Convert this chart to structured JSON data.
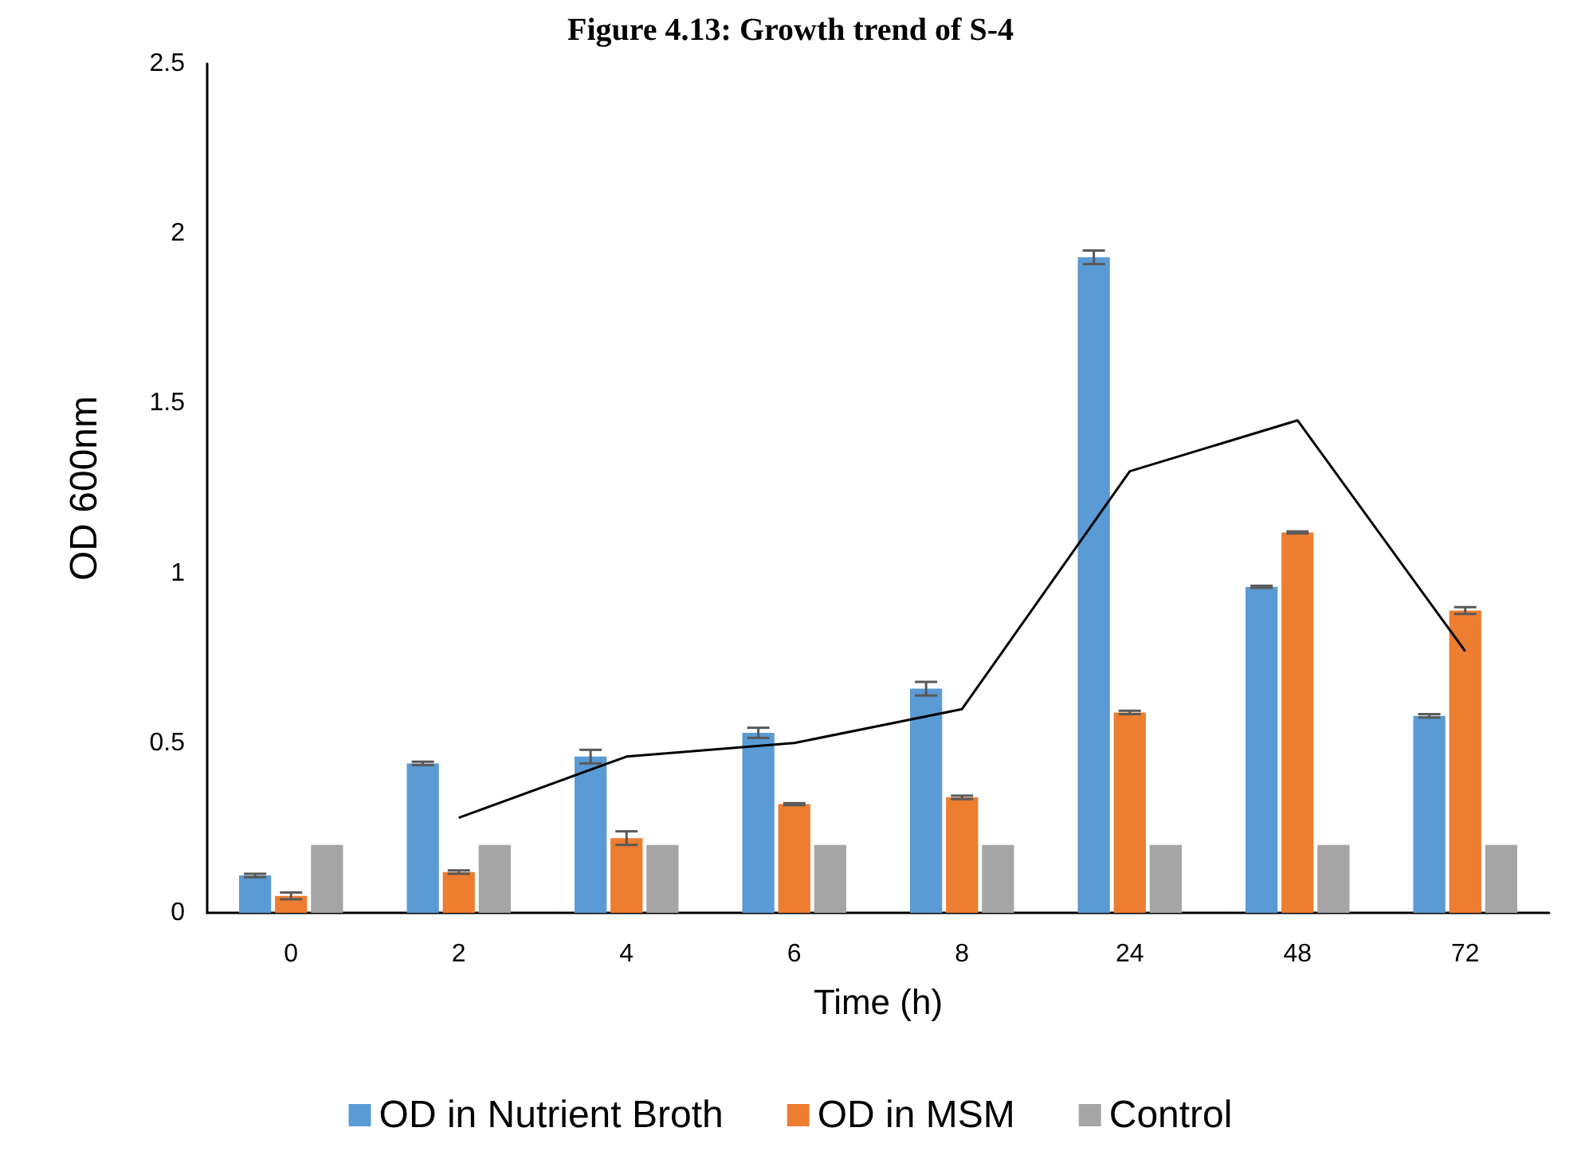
{
  "chart_data": {
    "type": "bar",
    "title": "Figure 4.13: Growth trend of S-4",
    "xlabel": "Time (h)",
    "ylabel": "OD 600nm",
    "categories": [
      "0",
      "2",
      "4",
      "6",
      "8",
      "24",
      "48",
      "72"
    ],
    "series": [
      {
        "name": "OD in Nutrient Broth",
        "color": "#5b9bd5",
        "values": [
          0.11,
          0.44,
          0.46,
          0.53,
          0.66,
          1.93,
          0.96,
          0.58
        ],
        "errors": [
          0.005,
          0.005,
          0.02,
          0.015,
          0.02,
          0.02,
          0.003,
          0.005
        ]
      },
      {
        "name": "OD in MSM",
        "color": "#ed7d31",
        "values": [
          0.05,
          0.12,
          0.22,
          0.32,
          0.34,
          0.59,
          1.12,
          0.89
        ],
        "errors": [
          0.01,
          0.005,
          0.02,
          0.003,
          0.005,
          0.005,
          0.003,
          0.01
        ]
      },
      {
        "name": "Control",
        "color": "#a5a5a5",
        "values": [
          0.2,
          0.2,
          0.2,
          0.2,
          0.2,
          0.2,
          0.2,
          0.2
        ]
      },
      {
        "type": "line",
        "color": "#000000",
        "values": [
          null,
          0.28,
          0.46,
          0.5,
          0.6,
          1.3,
          1.45,
          0.77
        ]
      }
    ],
    "ylim": [
      0,
      2.5
    ],
    "yticks": [
      0,
      0.5,
      1,
      1.5,
      2,
      2.5
    ],
    "grid": false,
    "legend": "bottom",
    "marker": "none"
  }
}
